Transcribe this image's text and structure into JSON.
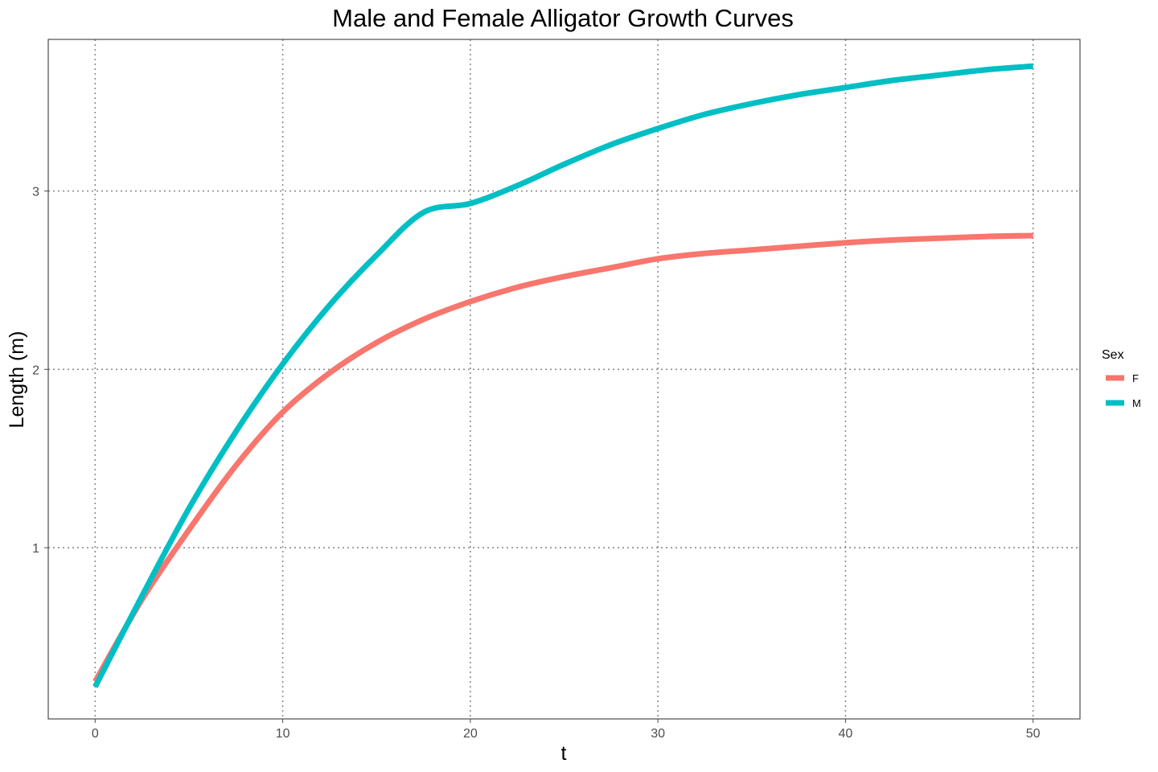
{
  "chart_data": {
    "type": "line",
    "title": "Male and Female Alligator Growth Curves",
    "xlabel": "t",
    "ylabel": "Length (m)",
    "xlim": [
      -2.5,
      52.5
    ],
    "ylim": [
      0.04,
      3.85
    ],
    "x_ticks": [
      0,
      10,
      20,
      30,
      40,
      50
    ],
    "y_ticks": [
      1,
      2,
      3
    ],
    "grid": true,
    "legend": {
      "title": "Sex",
      "placement": "right"
    },
    "x": [
      0,
      2.5,
      5,
      7.5,
      10,
      12.5,
      15,
      17.5,
      20,
      22.5,
      25,
      27.5,
      30,
      32.5,
      35,
      37.5,
      40,
      42.5,
      45,
      47.5,
      50
    ],
    "series": [
      {
        "name": "F",
        "color": "#F8766D",
        "values": [
          0.25,
          0.71,
          1.1,
          1.46,
          1.76,
          1.98,
          2.15,
          2.28,
          2.38,
          2.46,
          2.52,
          2.57,
          2.62,
          2.65,
          2.67,
          2.69,
          2.71,
          2.725,
          2.735,
          2.745,
          2.75
        ]
      },
      {
        "name": "M",
        "color": "#00BFC4",
        "values": [
          0.22,
          0.73,
          1.22,
          1.65,
          2.03,
          2.36,
          2.64,
          2.88,
          2.93,
          3.03,
          3.15,
          3.26,
          3.35,
          3.43,
          3.49,
          3.54,
          3.58,
          3.62,
          3.65,
          3.68,
          3.7
        ]
      }
    ]
  }
}
